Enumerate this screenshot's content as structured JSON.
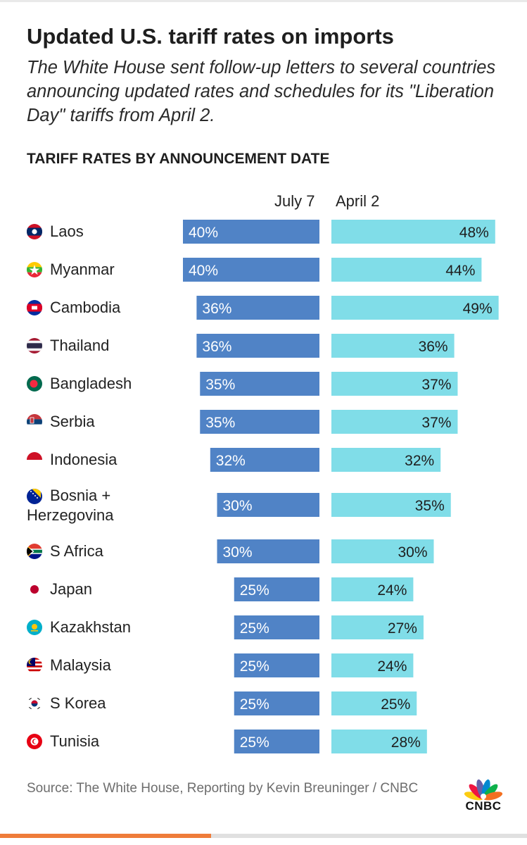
{
  "header": {
    "title": "Updated U.S. tariff rates on imports",
    "subtitle": "The White House sent follow-up letters to several countries announcing updated rates and schedules for its \"Liberation Day\" tariffs from April 2.",
    "section": "TARIFF RATES BY ANNOUNCEMENT DATE"
  },
  "colors": {
    "july7_bar": "#5083c6",
    "april2_bar": "#80dde8",
    "progress_bar": "#ef7c3a"
  },
  "chart_data": {
    "type": "bar",
    "title": "TARIFF RATES BY ANNOUNCEMENT DATE",
    "categories": [
      "Laos",
      "Myanmar",
      "Cambodia",
      "Thailand",
      "Bangladesh",
      "Serbia",
      "Indonesia",
      "Bosnia + Herzegovina",
      "S Africa",
      "Japan",
      "Kazakhstan",
      "Malaysia",
      "S Korea",
      "Tunisia"
    ],
    "category_icons": [
      "laos-flag-icon",
      "myanmar-flag-icon",
      "cambodia-flag-icon",
      "thailand-flag-icon",
      "bangladesh-flag-icon",
      "serbia-flag-icon",
      "indonesia-flag-icon",
      "bosnia-flag-icon",
      "south-africa-flag-icon",
      "japan-flag-icon",
      "kazakhstan-flag-icon",
      "malaysia-flag-icon",
      "south-korea-flag-icon",
      "tunisia-flag-icon"
    ],
    "series": [
      {
        "name": "July 7",
        "values": [
          40,
          40,
          36,
          36,
          35,
          35,
          32,
          30,
          30,
          25,
          25,
          25,
          25,
          25
        ],
        "labels": [
          "40%",
          "40%",
          "36%",
          "36%",
          "35%",
          "35%",
          "32%",
          "30%",
          "30%",
          "25%",
          "25%",
          "25%",
          "25%",
          "25%"
        ]
      },
      {
        "name": "April 2",
        "values": [
          48,
          44,
          49,
          36,
          37,
          37,
          32,
          35,
          30,
          24,
          27,
          24,
          25,
          28
        ],
        "labels": [
          "48%",
          "44%",
          "49%",
          "36%",
          "37%",
          "37%",
          "32%",
          "35%",
          "30%",
          "24%",
          "27%",
          "24%",
          "25%",
          "28%"
        ]
      }
    ],
    "layout": "diverging: July 7 bars extend left, April 2 bars extend right"
  },
  "footer": {
    "source": "Source: The White House, Reporting by Kevin Breuninger / CNBC",
    "logo": "CNBC"
  }
}
